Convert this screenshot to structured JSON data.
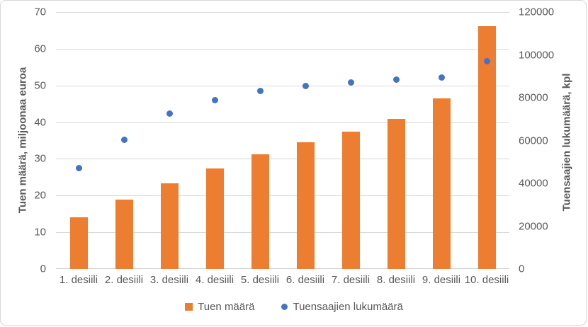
{
  "chart_data": {
    "type": "bar",
    "subtype": "combo-bar-scatter",
    "categories": [
      "1. desiili",
      "2. desiili",
      "3. desiili",
      "4. desiili",
      "5. desiili",
      "6. desiili",
      "7. desiili",
      "8. desiili",
      "9. desiili",
      "10. desiili"
    ],
    "series": [
      {
        "name": "Tuen määrä",
        "type": "bar",
        "axis": "left",
        "color": "#ED7D31",
        "values": [
          14.0,
          18.9,
          23.3,
          27.3,
          31.3,
          34.5,
          37.4,
          40.9,
          46.5,
          66.2
        ]
      },
      {
        "name": "Tuensaajien lukumäärä",
        "type": "scatter",
        "axis": "right",
        "color": "#4472C4",
        "values": [
          47000,
          60500,
          72500,
          79000,
          83000,
          85500,
          87000,
          88500,
          89500,
          97000
        ]
      }
    ],
    "left_axis": {
      "label": "Tuen määrä, miljoonaa euroa",
      "min": 0,
      "max": 70,
      "step": 10,
      "ticks": [
        "0",
        "10",
        "20",
        "30",
        "40",
        "50",
        "60",
        "70"
      ]
    },
    "right_axis": {
      "label": "Tuensaajien lukumäärä, kpl",
      "min": 0,
      "max": 120000,
      "step": 20000,
      "ticks": [
        "0",
        "20000",
        "40000",
        "60000",
        "80000",
        "100000",
        "120000"
      ]
    },
    "grid": true,
    "legend_position": "bottom",
    "colors": {
      "bar": "#ED7D31",
      "dot": "#4472C4",
      "gridline": "#D9D9D9",
      "text": "#595959"
    }
  }
}
